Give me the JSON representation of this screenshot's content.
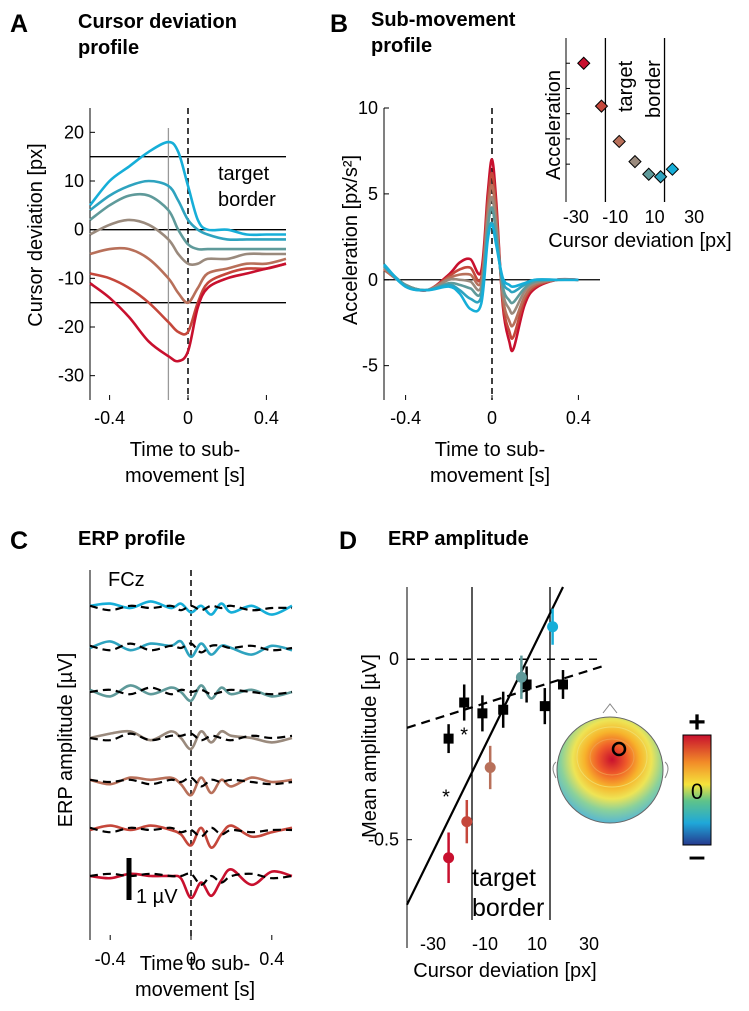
{
  "panels": {
    "A": {
      "letter": "A",
      "title_line1": "Cursor deviation",
      "title_line2": "profile"
    },
    "B": {
      "letter": "B",
      "title_line1": "Sub-movement",
      "title_line2": "profile"
    },
    "C": {
      "letter": "C",
      "title": "ERP profile"
    },
    "D": {
      "letter": "D",
      "title": "ERP amplitude"
    }
  },
  "colors": {
    "gradient": [
      "#c8102e",
      "#c5473b",
      "#b8705a",
      "#9a8a7d",
      "#5f9a9a",
      "#2ea3bf",
      "#16aed8"
    ],
    "black": "#000000",
    "grey": "#999999"
  },
  "chart_data": [
    {
      "id": "A",
      "type": "line",
      "title": "Cursor deviation profile",
      "xlabel_line1": "Time to sub-",
      "xlabel_line2": "movement [s]",
      "ylabel": "Cursor deviation [px]",
      "xlim": [
        -0.5,
        0.5
      ],
      "ylim": [
        -35,
        25
      ],
      "xticks": [
        -0.4,
        0,
        0.4
      ],
      "xtick_labels": [
        "-0.4",
        "0",
        "0.4"
      ],
      "yticks": [
        20,
        10,
        0,
        -10,
        -20,
        -30
      ],
      "ytick_labels": [
        "20",
        "10",
        "0",
        "-10",
        "-20",
        "-30"
      ],
      "hlines": [
        15,
        0,
        -15
      ],
      "vline_grey": -0.1,
      "vline_dashed": 0,
      "annotation_line1": "target",
      "annotation_line2": "border",
      "x": [
        -0.5,
        -0.4,
        -0.3,
        -0.2,
        -0.1,
        -0.05,
        0,
        0.05,
        0.1,
        0.2,
        0.3,
        0.4,
        0.5
      ],
      "series": [
        {
          "values": [
            5,
            10,
            13,
            16,
            18,
            16,
            9,
            2,
            0,
            0,
            -1,
            -1,
            -1
          ]
        },
        {
          "values": [
            4,
            7,
            9,
            10,
            9,
            6,
            2,
            0,
            -1,
            -2,
            -2,
            -2,
            -2
          ]
        },
        {
          "values": [
            2,
            5,
            7,
            7,
            4,
            0,
            -3,
            -4,
            -4,
            -4,
            -4,
            -4,
            -4
          ]
        },
        {
          "values": [
            -1,
            1,
            2,
            1,
            -2,
            -5,
            -7,
            -7,
            -6,
            -6,
            -5,
            -5,
            -5
          ]
        },
        {
          "values": [
            -5,
            -4,
            -4,
            -6,
            -10,
            -13,
            -15,
            -12,
            -9,
            -8,
            -7,
            -7,
            -6
          ]
        },
        {
          "values": [
            -9,
            -10,
            -12,
            -15,
            -19,
            -21,
            -21,
            -15,
            -11,
            -9,
            -8,
            -8,
            -7
          ]
        },
        {
          "values": [
            -11,
            -14,
            -18,
            -23,
            -26,
            -27,
            -25,
            -16,
            -12,
            -10,
            -9,
            -8,
            -7
          ]
        }
      ]
    },
    {
      "id": "B",
      "type": "line",
      "title": "Sub-movement profile",
      "xlabel_line1": "Time to sub-",
      "xlabel_line2": "movement [s]",
      "ylabel": "Acceleration [px/s²]",
      "xlim": [
        -0.5,
        0.5
      ],
      "ylim": [
        -7,
        10
      ],
      "xticks": [
        -0.4,
        0,
        0.4
      ],
      "xtick_labels": [
        "-0.4",
        "0",
        "0.4"
      ],
      "yticks": [
        10,
        5,
        0,
        -5
      ],
      "ytick_labels": [
        "10",
        "5",
        "0",
        "-5"
      ],
      "x": [
        -0.5,
        -0.4,
        -0.3,
        -0.2,
        -0.15,
        -0.1,
        -0.05,
        -0.02,
        0,
        0.02,
        0.05,
        0.08,
        0.1,
        0.15,
        0.2,
        0.3,
        0.4
      ],
      "series": [
        {
          "values": [
            0.6,
            -0.3,
            -0.6,
            0.3,
            1.0,
            1.2,
            0.5,
            5.0,
            7.0,
            4.5,
            -1.5,
            -3.6,
            -4.0,
            -1.5,
            -0.5,
            0,
            0
          ]
        },
        {
          "values": [
            0.6,
            -0.3,
            -0.6,
            0.2,
            0.6,
            0.7,
            0.1,
            4.5,
            6.2,
            4.0,
            -1.3,
            -3.0,
            -3.3,
            -1.2,
            -0.4,
            0,
            0
          ]
        },
        {
          "values": [
            0.6,
            -0.3,
            -0.6,
            0.1,
            0.3,
            0.3,
            -0.1,
            4.0,
            5.5,
            3.5,
            -1.0,
            -2.4,
            -2.6,
            -1.0,
            -0.3,
            0,
            0
          ]
        },
        {
          "values": [
            0.7,
            -0.3,
            -0.6,
            0,
            0,
            -0.1,
            -0.4,
            3.5,
            4.8,
            3.0,
            -0.7,
            -1.7,
            -1.9,
            -0.7,
            -0.2,
            0,
            0
          ]
        },
        {
          "values": [
            0.8,
            -0.3,
            -0.6,
            -0.2,
            -0.3,
            -0.5,
            -0.7,
            3.0,
            4.2,
            2.6,
            -0.4,
            -1.2,
            -1.3,
            -0.5,
            -0.1,
            0,
            0
          ]
        },
        {
          "values": [
            0.8,
            -0.4,
            -0.6,
            -0.3,
            -0.6,
            -1.1,
            -1.0,
            2.5,
            3.3,
            2.2,
            -0.1,
            -0.6,
            -0.7,
            -0.3,
            0,
            0,
            0
          ]
        },
        {
          "values": [
            0.9,
            -0.4,
            -0.6,
            -0.4,
            -0.8,
            -1.7,
            -1.4,
            2.3,
            3.2,
            2.0,
            0.1,
            -0.3,
            -0.4,
            -0.2,
            0,
            0,
            0
          ]
        }
      ]
    },
    {
      "id": "B-inset",
      "type": "scatter",
      "xlabel": "Cursor deviation [px]",
      "ylabel": "Acceleration",
      "xlim": [
        -35,
        33
      ],
      "ylim": [
        1.5,
        8
      ],
      "xticks": [
        -30,
        -10,
        10,
        30
      ],
      "xtick_labels": [
        "-30",
        "-10",
        "10",
        "30"
      ],
      "vlines": [
        -15,
        15
      ],
      "annotation_line1": "target",
      "annotation_line2": "border",
      "x": [
        -26,
        -17,
        -8,
        0,
        7,
        13,
        19
      ],
      "y": [
        7.0,
        5.3,
        3.9,
        3.1,
        2.6,
        2.5,
        2.8
      ]
    },
    {
      "id": "C",
      "type": "line",
      "title": "ERP profile",
      "channel": "FCz",
      "xlabel_line1": "Time to sub-",
      "xlabel_line2": "movement [s]",
      "ylabel": "ERP amplitude [µV]",
      "xlim": [
        -0.5,
        0.5
      ],
      "xticks": [
        -0.4,
        0,
        0.4
      ],
      "xtick_labels": [
        "-0.4",
        "0",
        "0.4"
      ],
      "scale_bar_label": "1 µV",
      "x": [
        -0.5,
        -0.4,
        -0.3,
        -0.2,
        -0.1,
        -0.05,
        0,
        0.05,
        0.1,
        0.15,
        0.2,
        0.3,
        0.4,
        0.5
      ],
      "rows": [
        {
          "values": [
            0.1,
            0.2,
            0.0,
            0.3,
            0.0,
            0.2,
            -0.2,
            0.1,
            -0.3,
            0.2,
            -0.2,
            0.1,
            -0.3,
            0.1
          ],
          "dashed": [
            0.1,
            -0.1,
            0.1,
            0.0,
            0.1,
            -0.1,
            0.1,
            -0.1,
            0.1,
            0.0,
            0.1,
            -0.1,
            0.0,
            0.0
          ]
        },
        {
          "values": [
            0.0,
            0.3,
            -0.1,
            0.2,
            0.1,
            0.3,
            -0.4,
            0.2,
            -0.3,
            0.1,
            0.0,
            -0.3,
            0.1,
            -0.1
          ],
          "dashed": [
            0.1,
            -0.1,
            0.2,
            -0.1,
            0.1,
            0.0,
            0.2,
            -0.2,
            0.1,
            0.1,
            0.0,
            0.1,
            -0.1,
            0.0
          ]
        },
        {
          "values": [
            0.1,
            -0.2,
            0.3,
            -0.1,
            0.2,
            0.0,
            -0.4,
            0.3,
            -0.3,
            0.2,
            -0.1,
            0.1,
            -0.2,
            0.0
          ],
          "dashed": [
            0.0,
            0.1,
            -0.1,
            0.2,
            -0.1,
            0.1,
            0.0,
            0.1,
            -0.1,
            0.0,
            0.1,
            0.0,
            -0.1,
            0.0
          ]
        },
        {
          "values": [
            0.0,
            0.2,
            0.3,
            -0.1,
            0.3,
            0.0,
            -0.5,
            0.3,
            -0.2,
            0.3,
            0.1,
            0.0,
            -0.2,
            0.0
          ],
          "dashed": [
            0.0,
            -0.1,
            0.2,
            -0.1,
            0.1,
            0.1,
            0.2,
            -0.1,
            0.1,
            0.0,
            -0.1,
            0.1,
            0.0,
            0.1
          ]
        },
        {
          "values": [
            0.1,
            -0.1,
            0.2,
            0.1,
            0.2,
            -0.1,
            -0.6,
            0.2,
            -0.5,
            0.1,
            -0.2,
            0.2,
            0.0,
            0.1
          ],
          "dashed": [
            0.1,
            0.0,
            0.1,
            -0.1,
            0.1,
            0.0,
            0.2,
            -0.2,
            0.1,
            0.0,
            0.1,
            0.0,
            -0.1,
            0.0
          ]
        },
        {
          "values": [
            0.0,
            0.2,
            0.0,
            0.2,
            0.0,
            -0.2,
            -0.7,
            0.1,
            -0.8,
            -0.2,
            0.2,
            -0.3,
            -0.1,
            0.1
          ],
          "dashed": [
            0.1,
            -0.1,
            0.1,
            0.0,
            0.1,
            -0.1,
            0.0,
            -0.3,
            0.1,
            -0.2,
            0.0,
            -0.1,
            0.0,
            0.0
          ]
        },
        {
          "values": [
            0.0,
            -0.1,
            0.1,
            0.0,
            0.0,
            -0.1,
            -1.0,
            -0.3,
            -0.9,
            -0.2,
            0.3,
            -0.4,
            0.2,
            0.0
          ],
          "dashed": [
            0.0,
            0.1,
            0.0,
            0.1,
            0.0,
            0.0,
            0.1,
            -0.4,
            0.0,
            -0.3,
            0.0,
            0.1,
            -0.1,
            0.0
          ]
        }
      ]
    },
    {
      "id": "D",
      "type": "scatter",
      "title": "ERP amplitude",
      "xlabel": "Cursor deviation [px]",
      "ylabel": "Mean amplitude [µV]",
      "xlim": [
        -40,
        35
      ],
      "ylim": [
        -0.8,
        0.2
      ],
      "xticks": [
        -30,
        -10,
        10,
        30
      ],
      "xtick_labels": [
        "-30",
        "-10",
        "10",
        "30"
      ],
      "yticks": [
        0,
        -0.5
      ],
      "ytick_labels": [
        "0",
        "-0.5"
      ],
      "vlines": [
        -15,
        15
      ],
      "hline_dashed": 0,
      "annotation_line1": "target",
      "annotation_line2": "border",
      "significance_mark": "*",
      "significance_x": [
        -25,
        -18
      ],
      "colored_points": {
        "x": [
          -24,
          -17,
          -8,
          4,
          16
        ],
        "y": [
          -0.55,
          -0.45,
          -0.3,
          -0.05,
          0.09
        ],
        "err": [
          0.07,
          0.06,
          0.06,
          0.06,
          0.05
        ],
        "colors": [
          "#c8102e",
          "#c5473b",
          "#b8705a",
          "#5f9a9a",
          "#16aed8"
        ]
      },
      "black_points": {
        "x": [
          -24,
          -18,
          -11,
          -3,
          6,
          13,
          20
        ],
        "y": [
          -0.22,
          -0.12,
          -0.15,
          -0.14,
          -0.07,
          -0.13,
          -0.07
        ],
        "err": [
          0.04,
          0.05,
          0.05,
          0.05,
          0.05,
          0.05,
          0.04
        ]
      },
      "fit_solid": {
        "x": [
          -40,
          20
        ],
        "y": [
          -0.68,
          0.2
        ]
      },
      "fit_dashed": {
        "x": [
          -40,
          35
        ],
        "y": [
          -0.19,
          -0.02
        ]
      },
      "topo_colorbar": {
        "plus": "+",
        "zero": "0",
        "minus": "–"
      }
    }
  ]
}
